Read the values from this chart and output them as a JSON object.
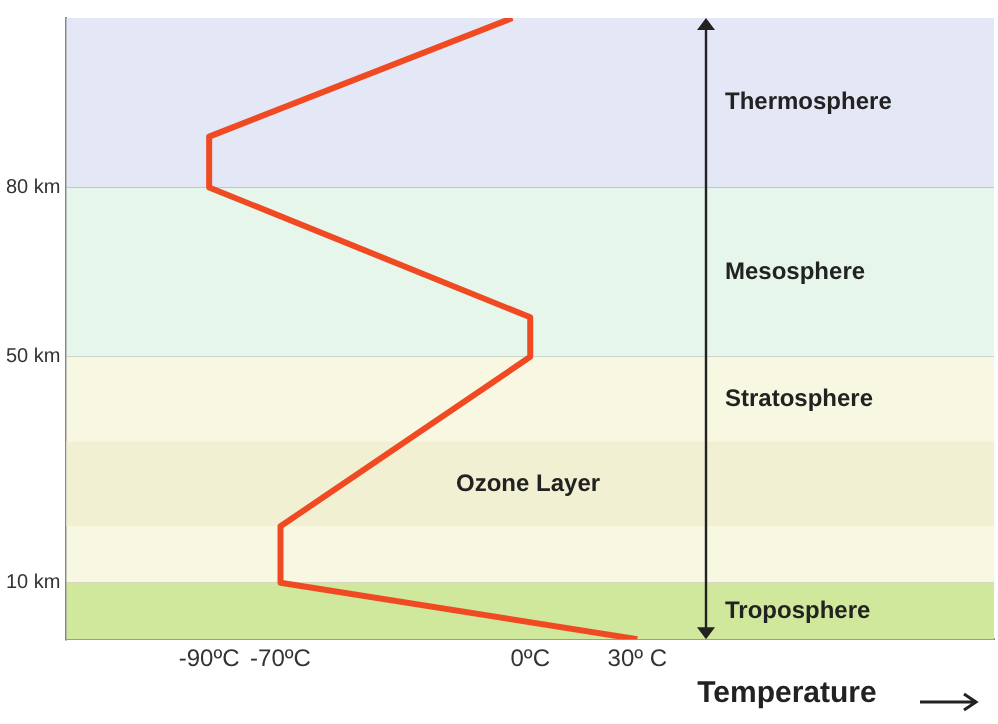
{
  "chart_data": {
    "type": "line",
    "xlabel": "Temperature",
    "x": [
      30,
      -70,
      -70,
      0,
      0,
      -90,
      -90,
      -5
    ],
    "series": [
      {
        "color": "#f04a23",
        "values": [
          0,
          10,
          20,
          50,
          57,
          80,
          89,
          110
        ]
      }
    ],
    "xlim": [
      -130,
      130
    ],
    "xticks": [
      {
        "value": -90,
        "label": "-90ºC"
      },
      {
        "value": -70,
        "label": "-70ºC"
      },
      {
        "value": 0,
        "label": "0ºC"
      },
      {
        "value": 30,
        "label": "30º C"
      }
    ],
    "ylim": [
      0,
      110
    ],
    "yticks": [
      {
        "value": 10,
        "label": "10 km"
      },
      {
        "value": 50,
        "label": "50 km"
      },
      {
        "value": 80,
        "label": "80 km"
      }
    ],
    "grid": "y",
    "legend": false,
    "marker": "none",
    "line_style": "solid",
    "bands": [
      {
        "axis": "y",
        "from": 0,
        "to": 10,
        "label": "Troposphere",
        "color": "#cfe89c"
      },
      {
        "axis": "y",
        "from": 10,
        "to": 50,
        "label": "Stratosphere",
        "color": "#f8f7e1"
      },
      {
        "axis": "y",
        "from": 20,
        "to": 35,
        "label": "Ozone Layer",
        "color": "#f1f0d2"
      },
      {
        "axis": "y",
        "from": 50,
        "to": 80,
        "label": "Mesosphere",
        "color": "#e7f6ea"
      },
      {
        "axis": "y",
        "from": 80,
        "to": 110,
        "label": "Thermosphere",
        "color": "#e4e7f6"
      }
    ]
  }
}
